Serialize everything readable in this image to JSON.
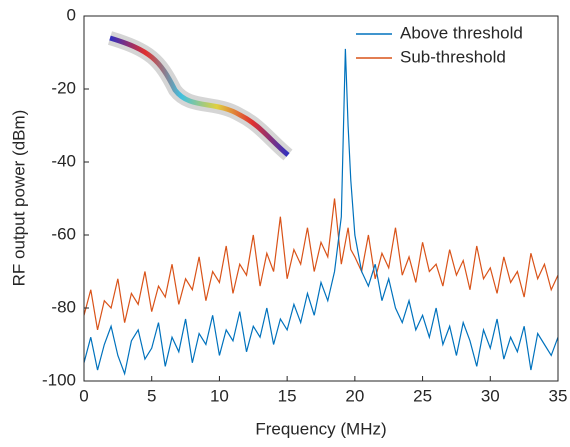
{
  "chart_data": {
    "type": "line",
    "xlabel": "Frequency (MHz)",
    "ylabel": "RF output power (dBm)",
    "x": [
      0,
      0.5,
      1,
      1.5,
      2,
      2.5,
      3,
      3.5,
      4,
      4.5,
      5,
      5.5,
      6,
      6.5,
      7,
      7.5,
      8,
      8.5,
      9,
      9.5,
      10,
      10.5,
      11,
      11.5,
      12,
      12.5,
      13,
      13.5,
      14,
      14.5,
      15,
      15.5,
      16,
      16.5,
      17,
      17.5,
      18,
      18.5,
      19,
      19.3,
      19.5,
      19.7,
      20,
      20.5,
      21,
      21.5,
      22,
      22.5,
      23,
      23.5,
      24,
      24.5,
      25,
      25.5,
      26,
      26.5,
      27,
      27.5,
      28,
      28.5,
      29,
      29.5,
      30,
      30.5,
      31,
      31.5,
      32,
      32.5,
      33,
      33.5,
      34,
      34.5,
      35
    ],
    "series": [
      {
        "name": "Sub-threshold",
        "color": "#d95319",
        "values": [
          -82,
          -75,
          -86,
          -78,
          -80,
          -72,
          -84,
          -76,
          -79,
          -70,
          -81,
          -74,
          -77,
          -68,
          -79,
          -72,
          -75,
          -66,
          -78,
          -70,
          -73,
          -63,
          -76,
          -68,
          -71,
          -60,
          -74,
          -65,
          -70,
          -55,
          -72,
          -64,
          -68,
          -58,
          -70,
          -62,
          -66,
          -50,
          -68,
          -62,
          -58,
          -64,
          -66,
          -70,
          -60,
          -72,
          -65,
          -69,
          -58,
          -71,
          -66,
          -73,
          -62,
          -70,
          -68,
          -74,
          -64,
          -71,
          -67,
          -75,
          -63,
          -72,
          -69,
          -76,
          -66,
          -73,
          -70,
          -77,
          -65,
          -72,
          -68,
          -75,
          -71
        ]
      },
      {
        "name": "Above threshold",
        "color": "#0072bd",
        "values": [
          -95,
          -88,
          -97,
          -90,
          -85,
          -93,
          -98,
          -89,
          -86,
          -94,
          -91,
          -84,
          -96,
          -88,
          -92,
          -83,
          -95,
          -87,
          -90,
          -82,
          -93,
          -86,
          -89,
          -81,
          -92,
          -85,
          -88,
          -80,
          -90,
          -83,
          -86,
          -79,
          -84,
          -76,
          -82,
          -73,
          -78,
          -70,
          -55,
          -9,
          -30,
          -45,
          -60,
          -70,
          -74,
          -68,
          -78,
          -72,
          -80,
          -84,
          -78,
          -86,
          -82,
          -88,
          -80,
          -90,
          -85,
          -93,
          -84,
          -89,
          -96,
          -86,
          -91,
          -83,
          -94,
          -88,
          -92,
          -85,
          -97,
          -87,
          -90,
          -93,
          -88
        ]
      }
    ],
    "xlim": [
      0,
      35
    ],
    "xticks": [
      0,
      5,
      10,
      15,
      20,
      25,
      30,
      35
    ],
    "ylim": [
      -100,
      0
    ],
    "yticks": [
      -100,
      -80,
      -60,
      -40,
      -20,
      0
    ],
    "legend": "upper right"
  }
}
